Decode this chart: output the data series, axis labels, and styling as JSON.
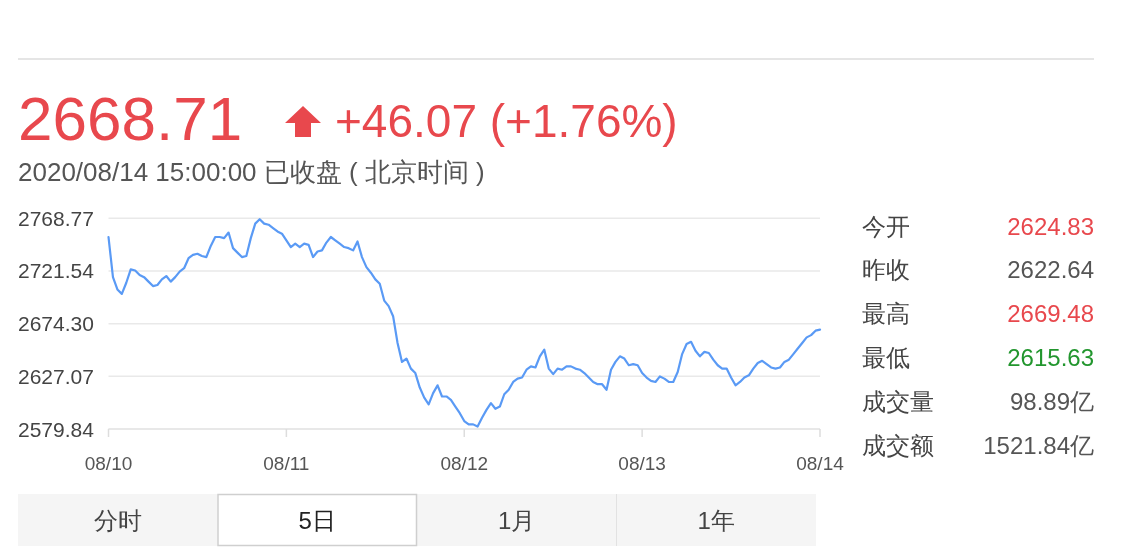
{
  "chart_data": {
    "type": "line",
    "title": "2668.71",
    "subtitle": "2020/08/14 15:00:00 已收盘 ( 北京时间 )",
    "annotations": [
      "+46.07 (+1.76%)",
      "今开",
      "2624.83",
      "昨收",
      "2622.64",
      "最高",
      "2669.48",
      "最低",
      "2615.63",
      "成交量",
      "98.89亿",
      "成交额",
      "1521.84亿",
      "分时",
      "5日",
      "1月",
      "1年"
    ],
    "categories": [
      "08/10",
      null,
      null,
      null,
      null,
      null,
      null,
      null,
      null,
      null,
      null,
      null,
      null,
      null,
      null,
      null,
      null,
      null,
      null,
      null,
      null,
      null,
      null,
      null,
      null,
      null,
      null,
      null,
      null,
      null,
      null,
      null,
      null,
      null,
      null,
      null,
      null,
      null,
      null,
      null,
      "08/11",
      null,
      null,
      null,
      null,
      null,
      null,
      null,
      null,
      null,
      null,
      null,
      null,
      null,
      null,
      null,
      null,
      null,
      null,
      null,
      null,
      null,
      null,
      null,
      null,
      null,
      null,
      null,
      null,
      null,
      null,
      null,
      null,
      null,
      null,
      null,
      null,
      null,
      null,
      null,
      "08/12",
      null,
      null,
      null,
      null,
      null,
      null,
      null,
      null,
      null,
      null,
      null,
      null,
      null,
      null,
      null,
      null,
      null,
      null,
      null,
      null,
      null,
      null,
      null,
      null,
      null,
      null,
      null,
      null,
      null,
      null,
      null,
      null,
      null,
      null,
      null,
      null,
      null,
      null,
      null,
      "08/13",
      null,
      null,
      null,
      null,
      null,
      null,
      null,
      null,
      null,
      null,
      null,
      null,
      null,
      null,
      null,
      null,
      null,
      null,
      null,
      null,
      null,
      null,
      null,
      null,
      null,
      null,
      null,
      null,
      null,
      null,
      null,
      null,
      null,
      null,
      null,
      null,
      null,
      null,
      null,
      "08/14"
    ],
    "series": [
      {
        "color": "#5a9af5",
        "values": [
          2752,
          2716,
          2705,
          2701,
          2711,
          2723,
          2722,
          2718,
          2716,
          2712,
          2708,
          2709,
          2714,
          2717,
          2712,
          2716,
          2721,
          2724,
          2733,
          2736,
          2737,
          2735,
          2734,
          2744,
          2752,
          2752,
          2751,
          2756,
          2742,
          2738,
          2734,
          2735,
          2751,
          2764,
          2768,
          2764,
          2763,
          2760,
          2757,
          2755,
          2749,
          2743,
          2746,
          2743,
          2746,
          2745,
          2734,
          2739,
          2740,
          2747,
          2752,
          2749,
          2746,
          2743,
          2742,
          2740,
          2748,
          2734,
          2725,
          2720,
          2714,
          2710,
          2695,
          2690,
          2681,
          2657,
          2640,
          2643,
          2634,
          2630,
          2617,
          2608,
          2602,
          2612,
          2619,
          2609,
          2609,
          2606,
          2600,
          2594,
          2587,
          2584,
          2584,
          2582,
          2590,
          2597,
          2603,
          2598,
          2600,
          2611,
          2615,
          2622,
          2625,
          2626,
          2633,
          2636,
          2635,
          2645,
          2651,
          2634,
          2629,
          2634,
          2633,
          2636,
          2636,
          2634,
          2633,
          2630,
          2626,
          2622,
          2620,
          2620,
          2615,
          2633,
          2640,
          2645,
          2643,
          2637,
          2638,
          2637,
          2630,
          2626,
          2623,
          2622,
          2627,
          2625,
          2622,
          2622,
          2631,
          2647,
          2656,
          2658,
          2650,
          2645,
          2649,
          2648,
          2642,
          2637,
          2634,
          2634,
          2626,
          2619,
          2622,
          2626,
          2628,
          2634,
          2639,
          2641,
          2638,
          2635,
          2634,
          2635,
          2640,
          2642,
          2647,
          2652,
          2657,
          2662,
          2664,
          2668,
          2669
        ]
      }
    ],
    "ylim": [
      2579.84,
      2768.77
    ],
    "yticks": [
      2579.84,
      2627.07,
      {
        "value": 2674.3,
        "label": "2674.30"
      },
      2721.54,
      2768.77
    ],
    "grid": "y"
  }
}
